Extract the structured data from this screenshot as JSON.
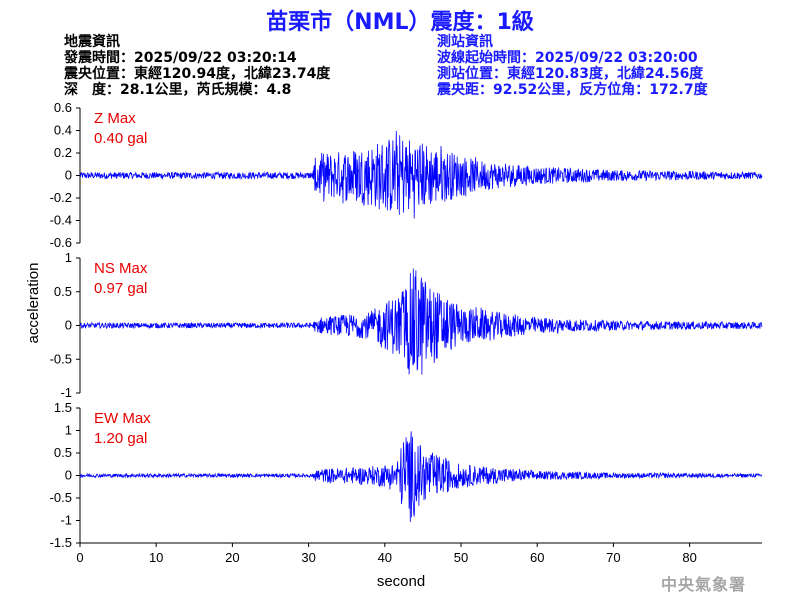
{
  "header": {
    "title": "苗栗市（NML）震度：1級"
  },
  "earthquake_info": {
    "heading": "地震資訊",
    "origin_time": "發震時間：2025/09/22 03:20:14",
    "epicenter": "震央位置：東經120.94度，北緯23.74度",
    "depth_magnitude": "深　度：28.1公里，芮氏規模：4.8"
  },
  "station_info": {
    "heading": "測站資訊",
    "waveform_start": "波線起始時間：2025/09/22 03:20:00",
    "location": "測站位置：東經120.83度，北緯24.56度",
    "distance": "震央距：92.52公里，反方位角：172.7度"
  },
  "watermark": "中央氣象署",
  "colors": {
    "title": "#1a1aff",
    "trace": "#0000ff",
    "max_label": "#e80000",
    "info_station": "#1a1aff",
    "info_quake": "#000000"
  },
  "chart_data": {
    "type": "line",
    "xlabel": "second",
    "ylabel": "acceleration",
    "xlim": [
      0,
      89.5
    ],
    "xticks": [
      0,
      10,
      20,
      30,
      40,
      50,
      60,
      70,
      80
    ],
    "panels": [
      {
        "name": "Z",
        "max_label": "Z Max",
        "max_value": "0.40 gal",
        "ylim": [
          -0.6,
          0.6
        ],
        "yticks": [
          0.6,
          0.4,
          0.2,
          0,
          -0.2,
          -0.4,
          -0.6
        ],
        "ytick_labels": [
          "0.6",
          "0.4",
          "0.2",
          "0",
          "-0.2",
          "-0.4",
          "-0.6"
        ],
        "envelope": [
          {
            "t": 0,
            "a": 0.03
          },
          {
            "t": 30.5,
            "a": 0.03
          },
          {
            "t": 31.0,
            "a": 0.2
          },
          {
            "t": 34,
            "a": 0.22
          },
          {
            "t": 38,
            "a": 0.28
          },
          {
            "t": 42,
            "a": 0.38
          },
          {
            "t": 46,
            "a": 0.28
          },
          {
            "t": 52,
            "a": 0.14
          },
          {
            "t": 60,
            "a": 0.08
          },
          {
            "t": 70,
            "a": 0.05
          },
          {
            "t": 89.5,
            "a": 0.03
          }
        ]
      },
      {
        "name": "NS",
        "max_label": "NS Max",
        "max_value": "0.97 gal",
        "ylim": [
          -1,
          1
        ],
        "yticks": [
          1,
          0.5,
          0,
          -0.5,
          -1
        ],
        "ytick_labels": [
          "1",
          "0.5",
          "0",
          "-0.5",
          "-1"
        ],
        "envelope": [
          {
            "t": 0,
            "a": 0.04
          },
          {
            "t": 30.5,
            "a": 0.04
          },
          {
            "t": 31.0,
            "a": 0.12
          },
          {
            "t": 38,
            "a": 0.2
          },
          {
            "t": 42,
            "a": 0.5
          },
          {
            "t": 44,
            "a": 0.92
          },
          {
            "t": 46,
            "a": 0.6
          },
          {
            "t": 50,
            "a": 0.28
          },
          {
            "t": 60,
            "a": 0.12
          },
          {
            "t": 70,
            "a": 0.07
          },
          {
            "t": 89.5,
            "a": 0.05
          }
        ]
      },
      {
        "name": "EW",
        "max_label": "EW Max",
        "max_value": "1.20 gal",
        "ylim": [
          -1.5,
          1.5
        ],
        "yticks": [
          1.5,
          1,
          0.5,
          0,
          -0.5,
          -1,
          -1.5
        ],
        "ytick_labels": [
          "1.5",
          "1",
          "0.5",
          "0",
          "-0.5",
          "-1",
          "-1.5"
        ],
        "envelope": [
          {
            "t": 0,
            "a": 0.04
          },
          {
            "t": 30.5,
            "a": 0.04
          },
          {
            "t": 31.0,
            "a": 0.15
          },
          {
            "t": 38,
            "a": 0.2
          },
          {
            "t": 41.5,
            "a": 0.3
          },
          {
            "t": 43,
            "a": 1.15
          },
          {
            "t": 45,
            "a": 0.6
          },
          {
            "t": 50,
            "a": 0.25
          },
          {
            "t": 60,
            "a": 0.1
          },
          {
            "t": 70,
            "a": 0.06
          },
          {
            "t": 89.5,
            "a": 0.04
          }
        ]
      }
    ]
  }
}
